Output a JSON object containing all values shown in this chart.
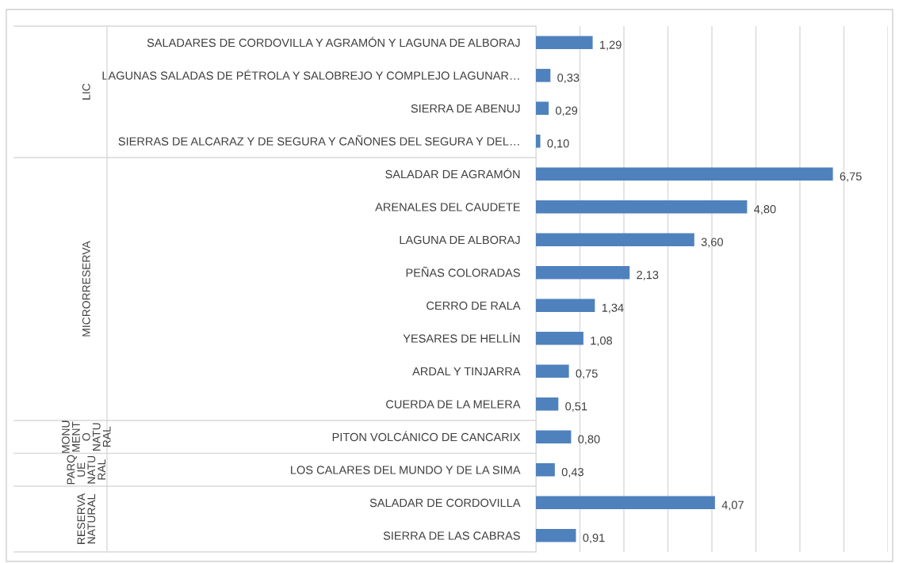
{
  "chart_data": {
    "type": "bar",
    "orientation": "horizontal",
    "categories": [
      "SALADARES DE CORDOVILLA Y AGRAMÓN Y LAGUNA DE ALBORAJ",
      "LAGUNAS SALADAS DE PÉTROLA Y SALOBREJO Y COMPLEJO LAGUNAR…",
      "SIERRA DE ABENUJ",
      "SIERRAS DE ALCARAZ Y DE SEGURA Y CAÑONES DEL SEGURA Y DEL…",
      "SALADAR DE AGRAMÓN",
      "ARENALES DEL CAUDETE",
      "LAGUNA DE ALBORAJ",
      "PEÑAS COLORADAS",
      "CERRO DE RALA",
      "YESARES DE HELLÍN",
      "ARDAL Y TINJARRA",
      "CUERDA DE LA MELERA",
      "PITON VOLCÁNICO DE CANCARIX",
      "LOS CALARES DEL MUNDO Y DE LA SIMA",
      "SALADAR DE CORDOVILLA",
      "SIERRA DE LAS CABRAS"
    ],
    "values": [
      1.29,
      0.33,
      0.29,
      0.1,
      6.75,
      4.8,
      3.6,
      2.13,
      1.34,
      1.08,
      0.75,
      0.51,
      0.8,
      0.43,
      4.07,
      0.91
    ],
    "value_labels": [
      "1,29",
      "0,33",
      "0,29",
      "0,10",
      "6,75",
      "4,80",
      "3,60",
      "2,13",
      "1,34",
      "1,08",
      "0,75",
      "0,51",
      "0,80",
      "0,43",
      "4,07",
      "0,91"
    ],
    "color": "#4f81bd",
    "xlim": [
      0,
      8
    ],
    "xticks": [
      {
        "value": 0,
        "label": null
      },
      {
        "value": 1,
        "label": null
      },
      {
        "value": 2,
        "label": null
      },
      {
        "value": 3,
        "label": null
      },
      {
        "value": 4,
        "label": null
      },
      {
        "value": 5,
        "label": null
      },
      {
        "value": 6,
        "label": null
      },
      {
        "value": 7,
        "label": null
      },
      {
        "value": 8,
        "label": null
      }
    ],
    "grid": "x",
    "annotations": [
      "LIC",
      "MICRORRESERVA",
      "MONUMENTO NATURAL",
      "PARQUE NATURAL",
      "RESERVA NATURAL"
    ]
  }
}
